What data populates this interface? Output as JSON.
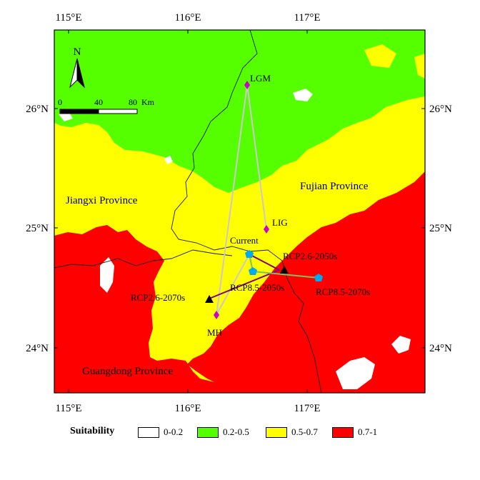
{
  "colors": {
    "class_0_0_2": "#ffffff",
    "class_0_2_0_5": "#55ff00",
    "class_0_5_0_7": "#ffff00",
    "class_0_7_1": "#ff0000",
    "line_dark": "#800080",
    "line_light": "#cfc6cf",
    "line_green": "#80c060",
    "pentagon": "#00aaee",
    "diamond": "#cc00cc"
  },
  "axes": {
    "x_ticks": [
      "115°E",
      "116°E",
      "117°E",
      "117°E"
    ],
    "x_ticks_top": [
      "115°E",
      "116°E",
      "117°E"
    ],
    "x_ticks_bottom": [
      "115°E",
      "116°E",
      "117°E"
    ],
    "y_ticks_left": [
      "26°N",
      "25°N",
      "24°N"
    ],
    "y_ticks_right": [
      "26°N",
      "25°N",
      "24°N"
    ]
  },
  "north_arrow": {
    "label": "N"
  },
  "scale_bar": {
    "labels": [
      "0",
      "40",
      "80"
    ],
    "unit": "Km"
  },
  "regions": {
    "jiangxi": "Jiangxi Province",
    "fujian": "Fujian Province",
    "guangdong": "Guangdong Province"
  },
  "points": {
    "lgm": "LGM",
    "lig": "LIG",
    "mh": "MH",
    "current": "Current",
    "rcp26_2050": "RCP2.6-2050s",
    "rcp26_2070": "RCP2.6-2070s",
    "rcp85_2050": "RCP8.5-2050s",
    "rcp85_2070": "RCP8.5-2070s"
  },
  "legend": {
    "title": "Suitability",
    "items": [
      {
        "label": "0-0.2",
        "color": "#ffffff"
      },
      {
        "label": "0.2-0.5",
        "color": "#55ff00"
      },
      {
        "label": "0.5-0.7",
        "color": "#ffff00"
      },
      {
        "label": "0.7-1",
        "color": "#ff0000"
      }
    ]
  }
}
